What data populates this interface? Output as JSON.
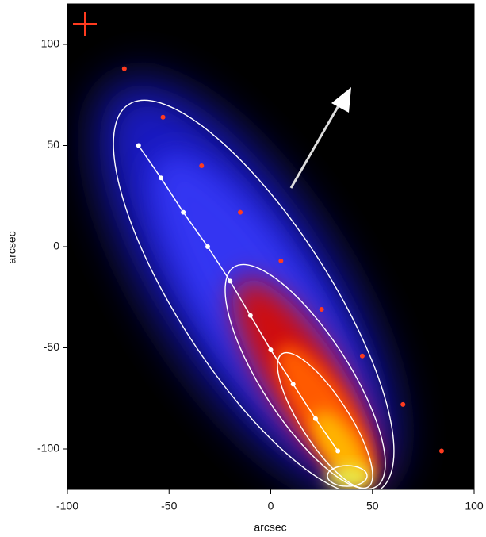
{
  "chart_data": {
    "type": "image",
    "xlabel": "arcsec",
    "ylabel": "arcsec",
    "xlim": [
      -100,
      100
    ],
    "ylim": [
      -120,
      120
    ],
    "xticks": [
      -100,
      -50,
      0,
      50,
      100
    ],
    "yticks": [
      -100,
      -50,
      0,
      50,
      100
    ],
    "series": [
      {
        "type": "line",
        "color": "#ffffff",
        "x": [
          -65,
          -54,
          -43,
          -31,
          -20,
          -10,
          0,
          11,
          22,
          33
        ],
        "values": [
          50,
          34,
          17,
          0,
          -17,
          -34,
          -51,
          -68,
          -85,
          -101
        ]
      },
      {
        "type": "scatter",
        "color": "#ff3b1f",
        "x": [
          -72,
          -53,
          -34,
          -15,
          5,
          25,
          45,
          65,
          84
        ],
        "values": [
          88,
          64,
          40,
          17,
          -7,
          -31,
          -54,
          -78,
          -101
        ]
      }
    ]
  }
}
